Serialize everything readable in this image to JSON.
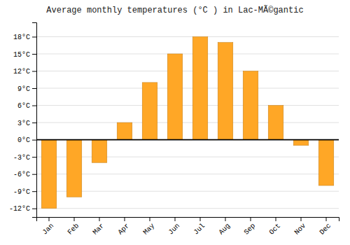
{
  "chart_data": {
    "type": "bar",
    "title": "Average monthly temperatures (°C ) in Lac-MÃ©gantic",
    "categories": [
      "Jan",
      "Feb",
      "Mar",
      "Apr",
      "May",
      "Jun",
      "Jul",
      "Aug",
      "Sep",
      "Oct",
      "Nov",
      "Dec"
    ],
    "values": [
      -12,
      -10,
      -4,
      3,
      10,
      15,
      18,
      17,
      12,
      6,
      -1,
      -8
    ],
    "color": "#FFA726",
    "ylim": [
      -13.5,
      20.5
    ],
    "yticks": [
      {
        "value": -12,
        "label": "-12°C"
      },
      {
        "value": -9,
        "label": "-9°C"
      },
      {
        "value": -6,
        "label": "-6°C"
      },
      {
        "value": -3,
        "label": "-3°C"
      },
      {
        "value": 0,
        "label": "0°C"
      },
      {
        "value": 3,
        "label": "3°C"
      },
      {
        "value": 6,
        "label": "6°C"
      },
      {
        "value": 9,
        "label": "9°C"
      },
      {
        "value": 12,
        "label": "12°C"
      },
      {
        "value": 15,
        "label": "15°C"
      },
      {
        "value": 18,
        "label": "18°C"
      }
    ],
    "grid": true
  }
}
